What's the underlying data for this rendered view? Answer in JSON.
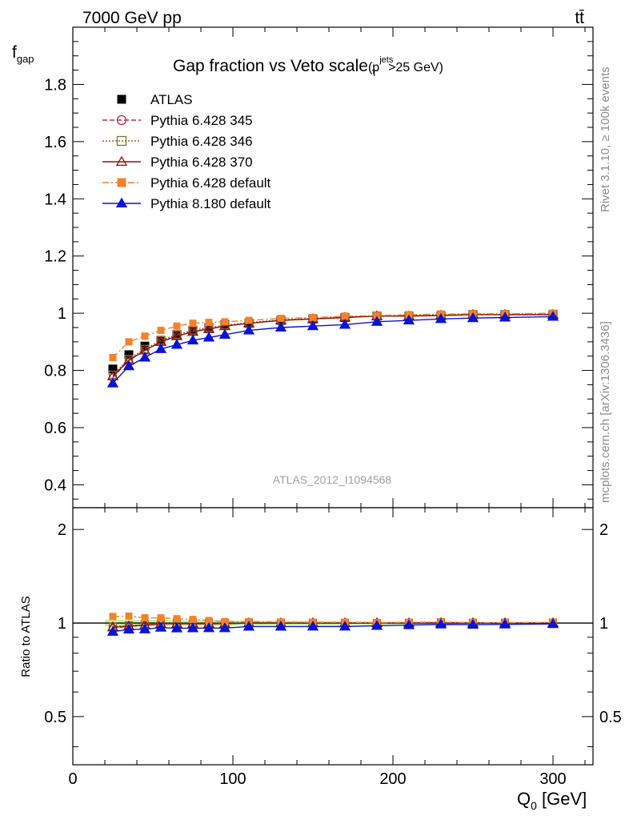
{
  "header": {
    "left": "7000 GeV pp",
    "right": "tt̄"
  },
  "side_text": {
    "top": "Rivet 3.1.10, ≥ 100k events",
    "bottom": "mcplots.cern.ch [arXiv:1306.3436]"
  },
  "watermark": "ATLAS_2012_I1094568",
  "chart_data": {
    "type": "scatter",
    "title": "Gap fraction vs Veto scale",
    "title_suffix": {
      "open": "(p",
      "sup": "jets",
      "sub": "T",
      "rest": ">25 GeV)"
    },
    "xlabel": {
      "main": "Q",
      "sub": "0",
      "unit": " [GeV]"
    },
    "ylabel": {
      "main": "f",
      "sub": "gap"
    },
    "ratio_ylabel": "Ratio to ATLAS",
    "xlim": [
      0,
      325
    ],
    "ylim": [
      0.32,
      2.0
    ],
    "ratio_ylim": [
      0.35,
      2.35
    ],
    "ratio_log": true,
    "x_ticks": [
      "0",
      "100",
      "200",
      "300"
    ],
    "y_ticks": [
      "0.4",
      "0.6",
      "0.8",
      "1",
      "1.2",
      "1.4",
      "1.6",
      "1.8"
    ],
    "ratio_ticks": [
      "0.5",
      "1",
      "2"
    ],
    "x": [
      25,
      35,
      45,
      55,
      65,
      75,
      85,
      95,
      110,
      130,
      150,
      170,
      190,
      210,
      230,
      250,
      270,
      300
    ],
    "series": [
      {
        "name": "ATLAS",
        "color": "#000000",
        "marker": "square-filled",
        "line": "none",
        "values": [
          0.805,
          0.855,
          0.885,
          0.905,
          0.925,
          0.94,
          0.95,
          0.96,
          0.965,
          0.975,
          0.98,
          0.985,
          0.99,
          0.99,
          0.99,
          0.995,
          0.995,
          0.995
        ]
      },
      {
        "name": "Pythia 6.428 345",
        "color": "#b5323f",
        "marker": "circle-open",
        "line": "dashed",
        "values": [
          0.775,
          0.835,
          0.87,
          0.9,
          0.92,
          0.935,
          0.945,
          0.955,
          0.965,
          0.975,
          0.98,
          0.985,
          0.99,
          0.99,
          0.992,
          0.995,
          0.995,
          0.995
        ]
      },
      {
        "name": "Pythia 6.428 346",
        "color": "#8c6d2a",
        "marker": "square-open",
        "line": "dotted",
        "values": [
          0.785,
          0.84,
          0.875,
          0.905,
          0.925,
          0.94,
          0.95,
          0.958,
          0.967,
          0.977,
          0.982,
          0.987,
          0.99,
          0.992,
          0.995,
          0.997,
          0.997,
          0.998
        ]
      },
      {
        "name": "Pythia 6.428 370",
        "color": "#8c1010",
        "marker": "triangle-open",
        "line": "solid",
        "values": [
          0.78,
          0.835,
          0.87,
          0.9,
          0.92,
          0.935,
          0.945,
          0.955,
          0.965,
          0.975,
          0.98,
          0.985,
          0.99,
          0.99,
          0.992,
          0.995,
          0.995,
          0.995
        ]
      },
      {
        "name": "Pythia 6.428 default",
        "color": "#f5822a",
        "marker": "square-filled",
        "line": "dashdot",
        "values": [
          0.845,
          0.9,
          0.92,
          0.94,
          0.955,
          0.965,
          0.968,
          0.97,
          0.975,
          0.982,
          0.985,
          0.99,
          0.992,
          0.995,
          0.997,
          0.998,
          0.998,
          1.0
        ]
      },
      {
        "name": "Pythia 8.180 default",
        "color": "#0a14d2",
        "marker": "triangle-filled",
        "line": "solid",
        "values": [
          0.755,
          0.815,
          0.845,
          0.875,
          0.89,
          0.905,
          0.915,
          0.925,
          0.94,
          0.95,
          0.955,
          0.96,
          0.97,
          0.975,
          0.98,
          0.983,
          0.985,
          0.988
        ]
      }
    ],
    "band_color": "#b4f08c",
    "legend_position": "top-left",
    "grid": false
  }
}
